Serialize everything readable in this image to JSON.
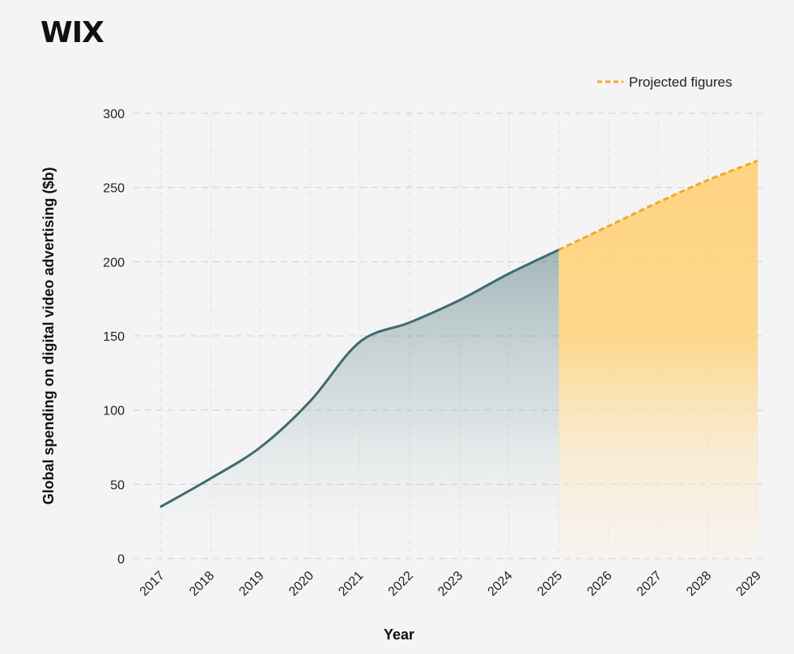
{
  "brand": {
    "logo_text": "WIX"
  },
  "chart_data": {
    "type": "area",
    "xlabel": "Year",
    "ylabel": "Global spending on digital video advertising ($b)",
    "ylim": [
      0,
      300
    ],
    "yticks": [
      0,
      50,
      100,
      150,
      200,
      250,
      300
    ],
    "x": [
      "2017",
      "2018",
      "2019",
      "2020",
      "2021",
      "2022",
      "2023",
      "2024",
      "2025",
      "2026",
      "2027",
      "2028",
      "2029"
    ],
    "grid": true,
    "legend_position": "top-right",
    "series": [
      {
        "kind": "actual",
        "values": [
          35,
          54,
          75,
          106,
          146,
          159,
          174,
          192,
          208,
          null,
          null,
          null,
          null
        ],
        "color": "#3f6a70"
      },
      {
        "kind": "projected",
        "name": "Projected figures",
        "values": [
          null,
          null,
          null,
          null,
          null,
          null,
          null,
          null,
          208,
          224,
          240,
          255,
          268
        ],
        "color": "#f2a92a"
      }
    ]
  }
}
